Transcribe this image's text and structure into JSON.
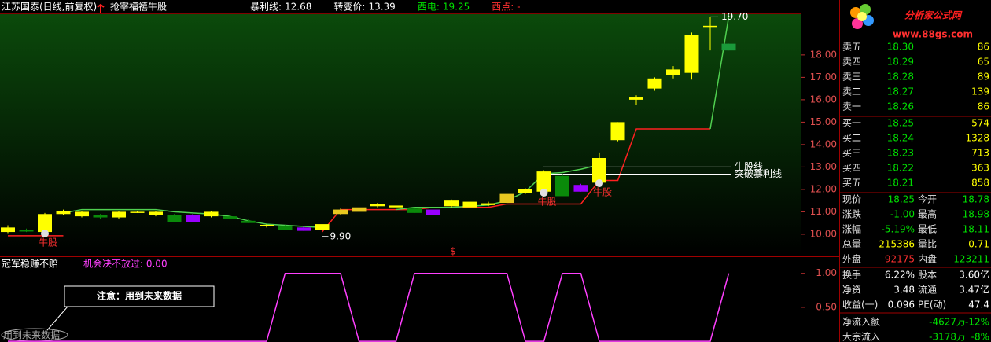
{
  "header": {
    "title": "江苏国泰(日线,前复权)",
    "formula": "抢宰福禧牛股",
    "items": [
      {
        "label": "暴利线:",
        "value": 12.68,
        "color": "#ffffff"
      },
      {
        "label": "转变价:",
        "value": 13.39,
        "color": "#ffffff"
      },
      {
        "label": "西电:",
        "value": 19.25,
        "color": "#00e000"
      },
      {
        "label": "西点:",
        "value": "-",
        "color": "#ff3030"
      }
    ]
  },
  "chart_data": [
    {
      "type": "candlestick",
      "open": [
        10.1,
        10.18,
        10.1,
        10.9,
        10.8,
        10.85,
        10.75,
        10.97,
        10.85,
        10.85,
        10.85,
        10.8,
        10.8,
        10.6,
        10.35,
        10.35,
        10.3,
        10.2,
        10.9,
        11.0,
        11.25,
        11.2,
        11.15,
        11.1,
        11.25,
        11.2,
        11.3,
        11.4,
        11.85,
        11.9,
        12.6,
        12.2,
        12.3,
        14.2,
        16.0,
        16.5,
        17.1,
        17.2,
        19.25,
        18.5
      ],
      "high": [
        10.4,
        10.25,
        10.95,
        11.1,
        11.05,
        10.9,
        11.05,
        11.05,
        11.05,
        10.9,
        10.9,
        11.05,
        10.85,
        10.65,
        10.45,
        10.4,
        10.35,
        10.55,
        11.15,
        11.6,
        11.4,
        11.35,
        11.2,
        11.15,
        11.55,
        11.5,
        11.45,
        12.05,
        12.05,
        12.85,
        12.7,
        12.25,
        13.65,
        15.0,
        16.2,
        17.0,
        17.5,
        19.0,
        19.7,
        18.5
      ],
      "low": [
        10.05,
        10.1,
        9.9,
        10.85,
        10.75,
        10.7,
        10.7,
        10.95,
        10.8,
        10.55,
        10.55,
        10.75,
        10.7,
        10.5,
        10.3,
        10.2,
        10.15,
        9.9,
        10.85,
        10.95,
        11.2,
        11.15,
        10.95,
        10.85,
        11.2,
        11.15,
        11.25,
        11.35,
        11.8,
        11.85,
        11.7,
        11.9,
        12.2,
        14.15,
        15.75,
        16.4,
        16.95,
        16.9,
        18.2,
        18.2
      ],
      "close": [
        10.3,
        10.12,
        10.9,
        11.05,
        11.0,
        10.75,
        11.0,
        11.0,
        11.0,
        10.55,
        10.55,
        11.0,
        10.7,
        10.5,
        10.42,
        10.2,
        10.15,
        10.45,
        11.1,
        11.2,
        11.35,
        11.28,
        10.95,
        10.85,
        11.5,
        11.45,
        11.38,
        11.8,
        12.0,
        12.8,
        11.7,
        11.9,
        13.4,
        15.0,
        16.1,
        16.95,
        17.35,
        18.9,
        19.3,
        18.2
      ],
      "colors": [
        "#ffff00",
        "#0a8a0a",
        "#ffff00",
        "#ffff00",
        "#ffff00",
        "#0a8a0a",
        "#ffff00",
        "#ffff00",
        "#ffff00",
        "#0a8a0a",
        "#9900ff",
        "#ffff00",
        "#0a8a0a",
        "#0a8a0a",
        "#ffff00",
        "#0a8a0a",
        "#9900ff",
        "#ffff00",
        "#e8c820",
        "#e8c820",
        "#ffff00",
        "#ffff00",
        "#0a8a0a",
        "#9900ff",
        "#ffff00",
        "#ffff00",
        "#ffff00",
        "#e8c820",
        "#ffff00",
        "#ffff00",
        "#0a8a0a",
        "#9900ff",
        "#ffff00",
        "#ffff00",
        "#ffff00",
        "#ffff00",
        "#ffff00",
        "#ffff00",
        "#ffff00",
        "#1a9a3a"
      ],
      "series": [
        {
          "color": "#ff2020",
          "values": [
            9.93,
            9.93,
            9.93,
            9.93,
            null,
            null,
            null,
            null,
            null,
            null,
            null,
            null,
            null,
            null,
            null,
            null,
            null,
            10.1,
            11.1,
            11.1,
            11.1,
            11.1,
            11.1,
            11.2,
            11.2,
            11.2,
            11.2,
            11.35,
            11.35,
            11.35,
            11.35,
            11.35,
            12.4,
            12.4,
            14.7,
            14.7,
            14.7,
            14.7,
            14.7,
            null
          ]
        },
        {
          "color": "#50d050",
          "values": [
            null,
            null,
            null,
            10.95,
            11.1,
            11.1,
            11.1,
            11.1,
            11.1,
            11.0,
            10.95,
            10.9,
            10.8,
            10.6,
            10.45,
            10.4,
            10.35,
            10.3,
            null,
            null,
            null,
            11.1,
            11.2,
            11.2,
            11.2,
            11.25,
            11.3,
            11.5,
            11.9,
            12.7,
            12.75,
            12.9,
            13.1,
            null,
            null,
            null,
            null,
            null,
            14.7,
            19.7
          ]
        }
      ],
      "ylim": [
        9.05,
        19.82
      ],
      "yticks": [
        {
          "value": 10,
          "label": "10.00"
        },
        {
          "value": 11,
          "label": "11.00"
        },
        {
          "value": 12,
          "label": "12.00"
        },
        {
          "value": 13,
          "label": "13.00"
        },
        {
          "value": 14,
          "label": "14.00"
        },
        {
          "value": 15,
          "label": "15.00"
        },
        {
          "value": 16,
          "label": "16.00"
        },
        {
          "value": 17,
          "label": "17.00"
        },
        {
          "value": 18,
          "label": "18.00"
        }
      ],
      "low_mark": {
        "value": 9.9,
        "label": "9.90"
      },
      "high_mark": {
        "value": 19.7,
        "label": "19.70"
      },
      "ref_lines": [
        {
          "label": "牛股线",
          "value": 13.0
        },
        {
          "label": "突破暴利线",
          "value": 12.68
        }
      ],
      "bull_label": "牛股",
      "marker": "$"
    },
    {
      "type": "line",
      "title": "冠军稳赚不赔",
      "legend": "机会决不放过: 0.00",
      "color": "#ff40ff",
      "values": [
        0,
        0,
        0,
        0,
        0,
        0,
        0,
        0,
        0,
        0,
        0,
        0,
        0,
        0,
        0,
        1,
        1,
        1,
        1,
        0,
        0,
        0,
        1,
        1,
        1,
        1,
        1,
        1,
        0,
        0,
        1,
        1,
        0,
        0,
        0,
        0,
        0,
        0,
        0,
        1
      ],
      "ylim": [
        -0.01,
        1.24
      ],
      "yticks": [
        {
          "value": 1,
          "label": "1.00"
        },
        {
          "value": 0.5,
          "label": "0.50"
        }
      ],
      "note": "注意：用到未来数据",
      "note_small": "用到未来数据"
    }
  ],
  "logo": {
    "name": "分析家公式网",
    "url": "www.88gs.com"
  },
  "quote": {
    "book": [
      [
        "卖五",
        "18.30",
        "86"
      ],
      [
        "卖四",
        "18.29",
        "65"
      ],
      [
        "卖三",
        "18.28",
        "89"
      ],
      [
        "卖二",
        "18.27",
        "139"
      ],
      [
        "卖一",
        "18.26",
        "86"
      ],
      [
        "买一",
        "18.25",
        "574"
      ],
      [
        "买二",
        "18.24",
        "1328"
      ],
      [
        "买三",
        "18.23",
        "713"
      ],
      [
        "买四",
        "18.22",
        "363"
      ],
      [
        "买五",
        "18.21",
        "858"
      ]
    ],
    "stats": [
      [
        "现价",
        "18.25",
        "今开",
        "18.78"
      ],
      [
        "涨跌",
        "-1.00",
        "最高",
        "18.98"
      ],
      [
        "涨幅",
        "-5.19%",
        "最低",
        "18.11"
      ],
      [
        "总量",
        "215386",
        "量比",
        "0.71"
      ],
      [
        "外盘",
        "92175",
        "内盘",
        "123211"
      ],
      [
        "换手",
        "6.22%",
        "股本",
        "3.60亿"
      ],
      [
        "净资",
        "3.48",
        "流通",
        "3.47亿"
      ],
      [
        "收益(一)",
        "0.096",
        "PE(动)",
        "47.4"
      ]
    ],
    "stat_colors": [
      [
        "#00e000",
        "#00e000"
      ],
      [
        "#00e000",
        "#00e000"
      ],
      [
        "#00e000",
        "#00e000"
      ],
      [
        "#ffff00",
        "#ffff00"
      ],
      [
        "#ff3030",
        "#00e000"
      ],
      [
        "#ffffff",
        "#ffffff"
      ],
      [
        "#ffffff",
        "#ffffff"
      ],
      [
        "#ffffff",
        "#ffffff"
      ]
    ],
    "flows": [
      [
        "净流入额",
        "-4627万",
        "-12%"
      ],
      [
        "大宗流入",
        "-3178万",
        "-8%"
      ]
    ]
  }
}
